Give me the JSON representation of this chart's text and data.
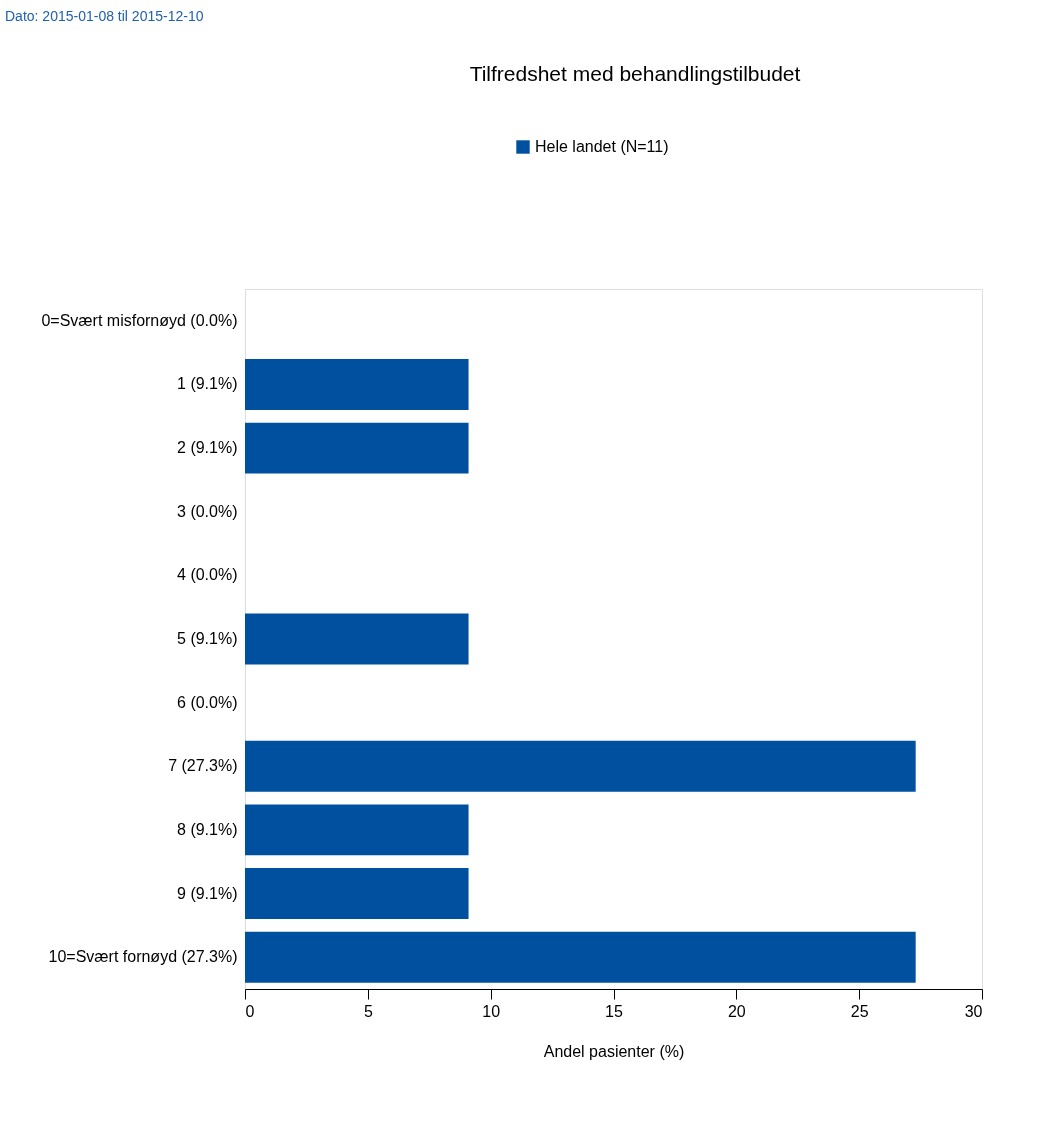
{
  "chart_data": {
    "type": "bar",
    "orientation": "horizontal",
    "title": "Tilfredshet med behandlingstilbudet",
    "xlabel": "Andel pasienter (%)",
    "annotations": [
      "Dato: 2015-01-08 til 2015-12-10"
    ],
    "categories": [
      "0=Svært misfornøyd (0.0%)",
      "1 (9.1%)",
      "2 (9.1%)",
      "3 (0.0%)",
      "4 (0.0%)",
      "5 (9.1%)",
      "6 (0.0%)",
      "7 (27.3%)",
      "8 (9.1%)",
      "9 (9.1%)",
      "10=Svært fornøyd (27.3%)"
    ],
    "series": [
      {
        "name": "Hele landet (N=11)",
        "color": "#0050a0",
        "values": [
          0.0,
          9.1,
          9.1,
          0.0,
          0.0,
          9.1,
          0.0,
          27.3,
          9.1,
          9.1,
          27.3
        ]
      }
    ],
    "xlim": [
      0,
      30
    ],
    "xticks": [
      0,
      5,
      10,
      15,
      20,
      25,
      30
    ],
    "grid": false,
    "legend": "top"
  }
}
